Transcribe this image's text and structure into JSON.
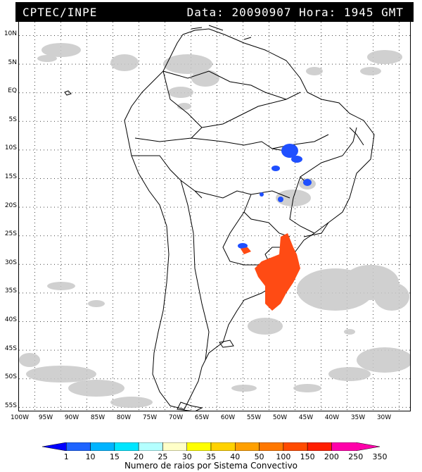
{
  "header": {
    "org": "CPTEC/INPE",
    "datetime": "Data: 20090907 Hora: 1945 GMT"
  },
  "map": {
    "lat_labels": [
      "10N",
      "5N",
      "EQ",
      "5S",
      "10S",
      "15S",
      "20S",
      "25S",
      "30S",
      "35S",
      "40S",
      "45S",
      "50S",
      "55S"
    ],
    "lon_labels": [
      "100W",
      "95W",
      "90W",
      "85W",
      "80W",
      "75W",
      "70W",
      "65W",
      "60W",
      "55W",
      "50W",
      "45W",
      "40W",
      "35W",
      "30W"
    ],
    "colors": {
      "coast": "#000000",
      "cloud_gray": "#c8c8c8",
      "lightning_blue": "#1f4fff",
      "lightning_orange": "#ff4b14"
    }
  },
  "legend": {
    "title": "Numero de raios por Sistema Convectivo",
    "ticks": [
      "1",
      "10",
      "15",
      "20",
      "25",
      "30",
      "35",
      "40",
      "50",
      "100",
      "150",
      "200",
      "250",
      "350"
    ],
    "colors": [
      "#0000ff",
      "#1e64ff",
      "#00b4ff",
      "#00e6ff",
      "#b4ffff",
      "#ffffc8",
      "#ffff00",
      "#ffd200",
      "#ffa000",
      "#ff7800",
      "#ff4b00",
      "#ff1e00",
      "#ff00aa"
    ]
  }
}
